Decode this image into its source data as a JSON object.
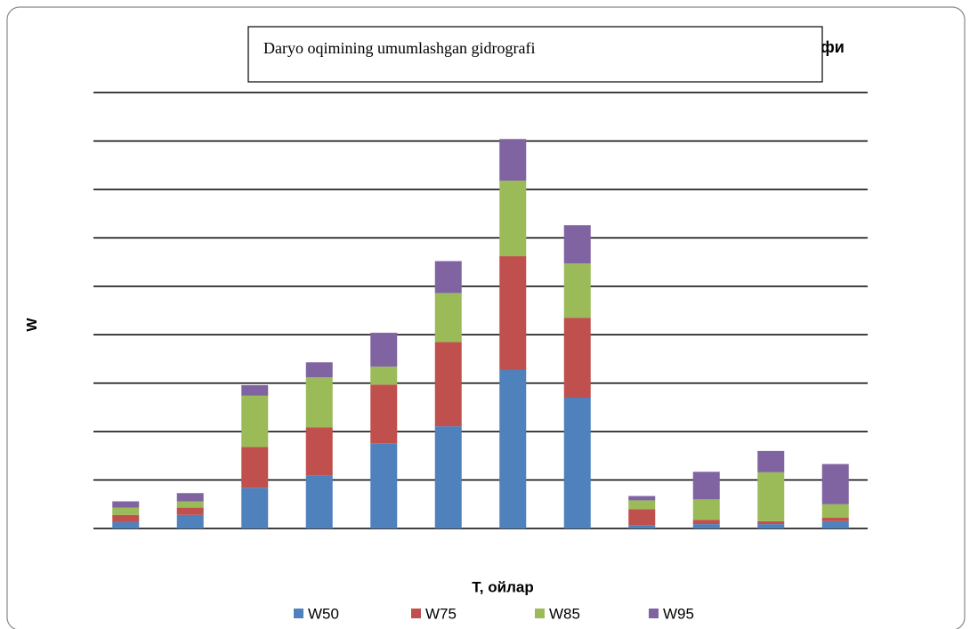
{
  "chart_data": {
    "type": "stacked_bar",
    "title": "Daryo oqimining umumlashgan gidrografi",
    "title_fragment": "фи",
    "x_label": "T, ойлар",
    "y_label": "W",
    "categories": [
      null,
      null,
      null,
      null,
      null,
      null,
      null,
      null,
      null,
      null,
      null,
      null
    ],
    "series": [
      {
        "name": "W50",
        "color": "#4f81bd",
        "values": [
          0.13,
          0.28,
          0.84,
          1.1,
          1.76,
          2.11,
          3.27,
          2.7,
          0.07,
          0.09,
          0.09,
          0.15
        ]
      },
      {
        "name": "W75",
        "color": "#c0504d",
        "values": [
          0.15,
          0.15,
          0.84,
          0.99,
          1.21,
          1.74,
          2.35,
          1.65,
          0.33,
          0.09,
          0.06,
          0.07
        ]
      },
      {
        "name": "W85",
        "color": "#9bbb59",
        "values": [
          0.15,
          0.13,
          1.06,
          1.03,
          0.37,
          1.01,
          1.56,
          1.12,
          0.18,
          0.42,
          1.01,
          0.28
        ]
      },
      {
        "name": "W95",
        "color": "#8064a2",
        "values": [
          0.13,
          0.17,
          0.22,
          0.31,
          0.7,
          0.66,
          0.86,
          0.79,
          0.09,
          0.57,
          0.44,
          0.83
        ]
      }
    ],
    "ylim": [
      0,
      9
    ],
    "yticks": [
      0,
      1,
      2,
      3,
      4,
      5,
      6,
      7,
      8,
      9
    ],
    "grid": true,
    "legend": "bottom"
  }
}
